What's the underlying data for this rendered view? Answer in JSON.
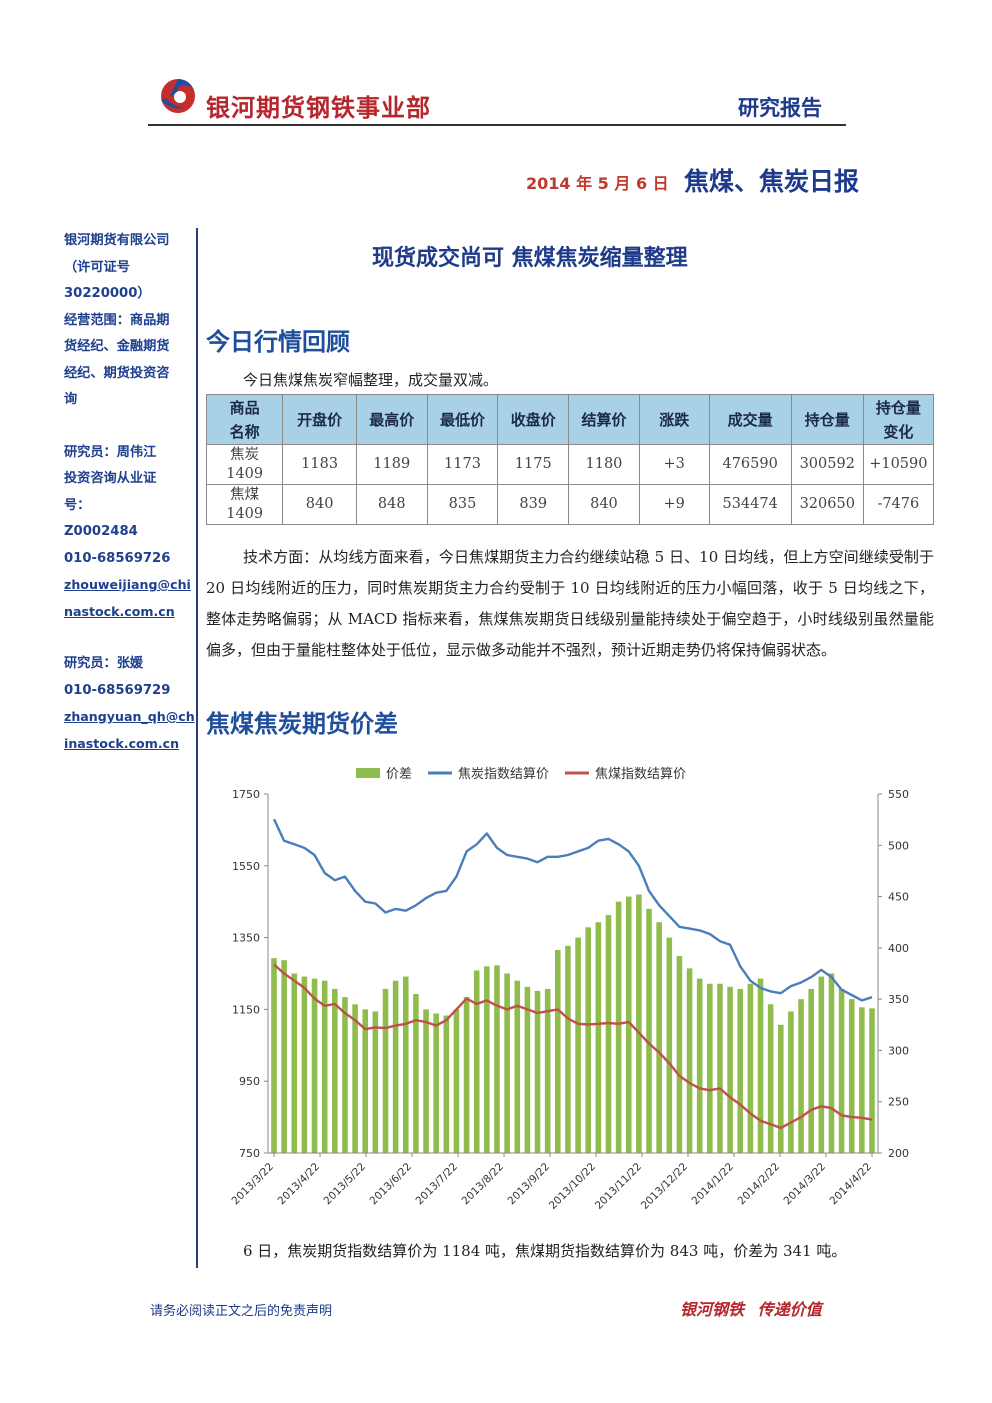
{
  "header": {
    "brand": "银河期货钢铁事业部",
    "report_type": "研究报告",
    "date": "2014 年 5 月 6 日",
    "title": "焦煤、焦炭日报"
  },
  "sidebar": {
    "company": [
      "银河期货有限公司",
      "（许可证号",
      "30220000）",
      "经营范围：商品期",
      "货经纪、金融期货",
      "经纪、期货投资咨",
      "询"
    ],
    "analyst1": [
      "研究员：周伟江",
      "投资咨询从业证",
      "号：",
      "Z0002484",
      "010-68569726"
    ],
    "analyst1_email": [
      "zhouweijiang@chi",
      "nastock.com.cn"
    ],
    "analyst2": [
      "研究员：张媛",
      "010-68569729"
    ],
    "analyst2_email": [
      "zhangyuan_qh@ch",
      "inastock.com.cn"
    ]
  },
  "headline": "现货成交尚可  焦煤焦炭缩量整理",
  "section1": {
    "title": "今日行情回顾",
    "intro": "今日焦煤焦炭窄幅整理，成交量双减。"
  },
  "table": {
    "headers": [
      "商品\n名称",
      "开盘价",
      "最高价",
      "最低价",
      "收盘价",
      "结算价",
      "涨跌",
      "成交量",
      "持仓量",
      "持仓量\n变化"
    ],
    "rows": [
      [
        "焦炭\n1409",
        "1183",
        "1189",
        "1173",
        "1175",
        "1180",
        "+3",
        "476590",
        "300592",
        "+10590"
      ],
      [
        "焦煤\n1409",
        "840",
        "848",
        "835",
        "839",
        "840",
        "+9",
        "534474",
        "320650",
        "-7476"
      ]
    ]
  },
  "body_text": "技术方面：从均线方面来看，今日焦煤期货主力合约继续站稳 5 日、10 日均线，但上方空间继续受制于 20 日均线附近的压力，同时焦炭期货主力合约受制于 10 日均线附近的压力小幅回落，收于 5 日均线之下，整体走势略偏弱；从 MACD 指标来看，焦煤焦炭期货日线级别量能持续处于偏空趋于，小时线级别虽然量能偏多，但由于量能柱整体处于低位，显示做多动能并不强烈，预计近期走势仍将保持偏弱状态。",
  "section2": {
    "title": "焦煤焦炭期货价差",
    "summary": "6 日，焦炭期货指数结算价为 1184 吨，焦煤期货指数结算价为 843 吨，价差为 341 吨。"
  },
  "chart_data": {
    "type": "line",
    "x": [
      "2013/3/22",
      "2013/3/29",
      "2013/4/5",
      "2013/4/12",
      "2013/4/19",
      "2013/4/26",
      "2013/5/3",
      "2013/5/10",
      "2013/5/17",
      "2013/5/24",
      "2013/5/31",
      "2013/6/7",
      "2013/6/14",
      "2013/6/21",
      "2013/6/28",
      "2013/7/5",
      "2013/7/12",
      "2013/7/19",
      "2013/7/26",
      "2013/8/2",
      "2013/8/9",
      "2013/8/16",
      "2013/8/23",
      "2013/8/30",
      "2013/9/6",
      "2013/9/13",
      "2013/9/20",
      "2013/9/27",
      "2013/10/4",
      "2013/10/11",
      "2013/10/18",
      "2013/10/25",
      "2013/11/1",
      "2013/11/8",
      "2013/11/15",
      "2013/11/22",
      "2013/11/29",
      "2013/12/6",
      "2013/12/13",
      "2013/12/20",
      "2013/12/27",
      "2014/1/3",
      "2014/1/10",
      "2014/1/17",
      "2014/1/24",
      "2014/1/31",
      "2014/2/7",
      "2014/2/14",
      "2014/2/21",
      "2014/2/28",
      "2014/3/7",
      "2014/3/14",
      "2014/3/21",
      "2014/3/28",
      "2014/4/4",
      "2014/4/11",
      "2014/4/18",
      "2014/4/25",
      "2014/5/2",
      "2014/5/6"
    ],
    "x_ticks": [
      "2013/3/22",
      "2013/4/22",
      "2013/5/22",
      "2013/6/22",
      "2013/7/22",
      "2013/8/22",
      "2013/9/22",
      "2013/10/22",
      "2013/11/22",
      "2013/12/22",
      "2014/1/22",
      "2014/2/22",
      "2014/3/22",
      "2014/4/22"
    ],
    "series": [
      {
        "name": "价差",
        "type": "bar",
        "axis": "right",
        "color": "#8fbc4c",
        "values": [
          390,
          388,
          375,
          372,
          370,
          368,
          360,
          352,
          345,
          340,
          338,
          360,
          368,
          372,
          355,
          340,
          336,
          334,
          340,
          352,
          378,
          382,
          383,
          375,
          368,
          362,
          358,
          360,
          398,
          402,
          410,
          420,
          425,
          432,
          445,
          450,
          452,
          438,
          425,
          410,
          392,
          380,
          370,
          365,
          365,
          362,
          360,
          365,
          370,
          345,
          325,
          338,
          350,
          360,
          372,
          375,
          360,
          350,
          342,
          341
        ]
      },
      {
        "name": "焦炭指数结算价",
        "type": "line",
        "axis": "left",
        "color": "#4a7ebb",
        "values": [
          1680,
          1620,
          1610,
          1600,
          1580,
          1530,
          1510,
          1520,
          1480,
          1450,
          1445,
          1420,
          1430,
          1425,
          1440,
          1460,
          1475,
          1480,
          1520,
          1590,
          1610,
          1640,
          1600,
          1580,
          1575,
          1570,
          1560,
          1575,
          1575,
          1580,
          1590,
          1600,
          1620,
          1625,
          1610,
          1590,
          1550,
          1480,
          1440,
          1410,
          1380,
          1375,
          1370,
          1360,
          1340,
          1330,
          1270,
          1230,
          1210,
          1200,
          1195,
          1215,
          1225,
          1240,
          1260,
          1240,
          1205,
          1190,
          1175,
          1184
        ]
      },
      {
        "name": "焦煤指数结算价",
        "type": "line",
        "axis": "left",
        "color": "#c0504d",
        "values": [
          1275,
          1250,
          1230,
          1210,
          1180,
          1160,
          1165,
          1140,
          1120,
          1095,
          1100,
          1098,
          1105,
          1110,
          1120,
          1115,
          1105,
          1120,
          1150,
          1180,
          1165,
          1175,
          1160,
          1150,
          1160,
          1150,
          1140,
          1145,
          1150,
          1125,
          1110,
          1108,
          1110,
          1112,
          1110,
          1115,
          1085,
          1055,
          1030,
          1000,
          965,
          945,
          930,
          925,
          930,
          905,
          885,
          860,
          840,
          830,
          820,
          835,
          850,
          870,
          880,
          875,
          855,
          850,
          848,
          843
        ]
      }
    ],
    "y_left": {
      "min": 750,
      "max": 1750,
      "ticks": [
        750,
        950,
        1150,
        1350,
        1550,
        1750
      ]
    },
    "y_right": {
      "min": 200,
      "max": 550,
      "ticks": [
        200,
        250,
        300,
        350,
        400,
        450,
        500,
        550
      ]
    },
    "legend_position": "top",
    "grid": false
  },
  "footer": {
    "disclaimer": "请务必阅读正文之后的免责声明",
    "slogan": "银河钢铁  传递价值"
  },
  "colors": {
    "brand_red": "#b5272d",
    "navy": "#1e3a8a",
    "table_header": "#a8d0e6"
  }
}
